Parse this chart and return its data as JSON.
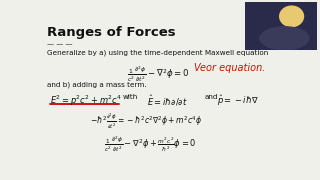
{
  "title": "Ranges of Forces",
  "bg_color": "#f0f0eb",
  "title_color": "#111111",
  "text_color": "#111111",
  "red_color": "#cc0000",
  "handwriting_color": "#cc1100",
  "line1": "Generalize by a) using the time-dependent Maxwell equation",
  "line2": "and b) adding a mass term.",
  "eq2_with": "with",
  "eq2c": "and"
}
